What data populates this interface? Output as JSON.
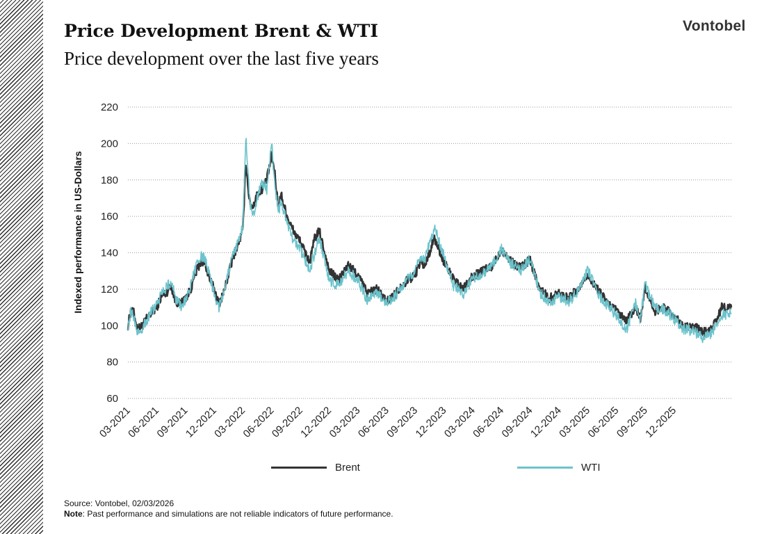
{
  "header": {
    "title": "Price Development Brent & WTI",
    "subtitle": "Price development over the last five years",
    "logo": "Vontobel"
  },
  "footer": {
    "source": "Source: Vontobel, 02/03/2026",
    "note_label": "Note",
    "note_text": ": Past performance and simulations are not reliable indicators of future performance."
  },
  "colors": {
    "brent": "#333333",
    "wti": "#6cc3cc",
    "grid": "#9a9a9a"
  },
  "chart_data": {
    "type": "line",
    "ylabel": "Indexed performance in US-Dollars",
    "ylim": [
      60,
      220
    ],
    "yticks": [
      60,
      80,
      100,
      120,
      140,
      160,
      180,
      200,
      220
    ],
    "xticks": [
      "03-2021",
      "06-2021",
      "09-2021",
      "12-2021",
      "03-2022",
      "06-2022",
      "09-2022",
      "12-2022",
      "03-2023",
      "06-2023",
      "09-2023",
      "12-2023",
      "03-2024",
      "06-2024",
      "09-2024",
      "12-2024",
      "03-2025",
      "06-2025",
      "09-2025",
      "12-2025"
    ],
    "x_unit": "months since 03-2021",
    "grid": "horizontal dotted",
    "legend_position": "bottom",
    "series": [
      {
        "name": "Brent",
        "x": [
          0,
          0.3,
          0.6,
          1,
          1.5,
          2,
          2.5,
          3,
          3.5,
          4,
          4.5,
          5,
          5.5,
          6,
          6.5,
          7,
          7.5,
          8,
          8.5,
          9,
          9.5,
          10,
          10.5,
          11,
          11.5,
          12,
          12.3,
          12.7,
          13,
          13.5,
          14,
          14.5,
          15,
          15.3,
          15.7,
          16,
          16.5,
          17,
          17.5,
          18,
          18.5,
          19,
          19.5,
          20,
          21,
          22,
          23,
          24,
          25,
          26,
          27,
          28,
          28.5,
          29,
          30,
          30.5,
          31,
          32,
          33,
          34,
          35,
          36,
          37,
          38,
          39,
          40,
          41,
          42,
          43,
          44,
          45,
          46,
          47,
          48,
          49,
          50,
          51,
          52,
          53,
          53.5,
          54,
          55,
          56,
          57,
          58,
          59,
          60,
          61,
          62,
          63
        ],
        "y": [
          100,
          108,
          107,
          98,
          100,
          104,
          107,
          110,
          116,
          118,
          122,
          113,
          112,
          115,
          119,
          128,
          134,
          135,
          126,
          120,
          112,
          118,
          128,
          138,
          145,
          152,
          190,
          168,
          165,
          172,
          175,
          180,
          193,
          185,
          165,
          172,
          162,
          155,
          150,
          146,
          140,
          135,
          148,
          152,
          130,
          125,
          133,
          128,
          118,
          120,
          113,
          118,
          122,
          124,
          128,
          135,
          133,
          148,
          135,
          125,
          120,
          127,
          130,
          132,
          142,
          135,
          132,
          136,
          120,
          115,
          118,
          115,
          120,
          128,
          120,
          113,
          108,
          102,
          110,
          104,
          121,
          108,
          110,
          105,
          100,
          100,
          96,
          98,
          110,
          110
        ],
        "end_month": 63
      },
      {
        "name": "WTI",
        "x": [
          0,
          0.3,
          0.6,
          1,
          1.5,
          2,
          2.5,
          3,
          3.5,
          4,
          4.5,
          5,
          5.5,
          6,
          6.5,
          7,
          7.5,
          8,
          8.5,
          9,
          9.5,
          10,
          10.5,
          11,
          11.5,
          12,
          12.3,
          12.7,
          13,
          13.5,
          14,
          14.5,
          15,
          15.3,
          15.7,
          16,
          16.5,
          17,
          17.5,
          18,
          18.5,
          19,
          19.5,
          20,
          21,
          22,
          23,
          24,
          25,
          26,
          27,
          28,
          28.5,
          29,
          30,
          30.5,
          31,
          32,
          33,
          34,
          35,
          36,
          37,
          38,
          39,
          40,
          41,
          42,
          43,
          44,
          45,
          46,
          47,
          48,
          49,
          50,
          51,
          52,
          53,
          53.5,
          54,
          55,
          56,
          57,
          58,
          59,
          60,
          61,
          62,
          63
        ],
        "y": [
          100,
          107,
          105,
          96,
          99,
          103,
          108,
          111,
          118,
          121,
          124,
          115,
          110,
          114,
          121,
          130,
          138,
          137,
          128,
          118,
          110,
          119,
          130,
          139,
          146,
          154,
          204,
          170,
          158,
          170,
          178,
          175,
          201,
          178,
          162,
          168,
          158,
          150,
          145,
          142,
          136,
          130,
          140,
          148,
          125,
          122,
          130,
          125,
          114,
          118,
          112,
          117,
          121,
          124,
          130,
          138,
          136,
          154,
          138,
          122,
          117,
          126,
          128,
          133,
          142,
          134,
          130,
          137,
          118,
          113,
          116,
          113,
          119,
          131,
          118,
          111,
          106,
          97,
          112,
          103,
          123,
          110,
          109,
          104,
          98,
          97,
          93,
          96,
          106,
          107
        ],
        "end_month": 63
      }
    ]
  }
}
